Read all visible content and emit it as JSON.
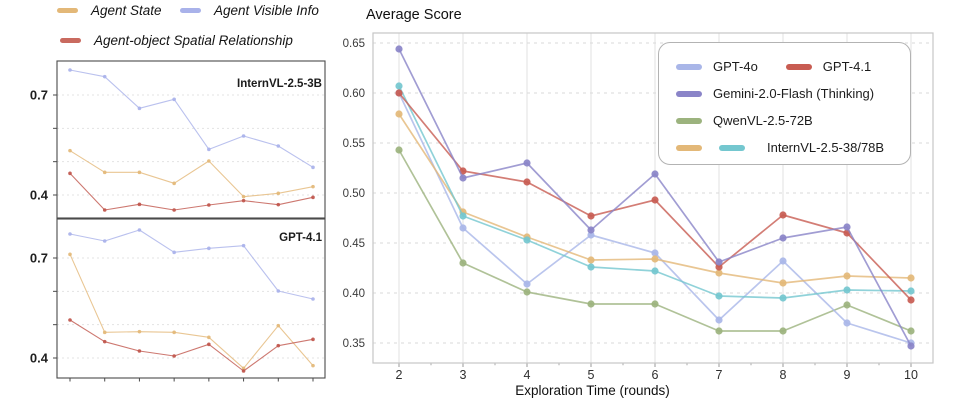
{
  "left_legend": {
    "items": [
      {
        "label": "Agent State",
        "color": "#e3b878"
      },
      {
        "label": "Agent Visible Info",
        "color": "#a9b2ea"
      },
      {
        "label": "Agent-object Spatial Relationship",
        "color": "#c96a5f"
      }
    ]
  },
  "chart_data": [
    {
      "type": "line",
      "title": "InternVL-2.5-3B",
      "ylim": [
        0.33,
        0.8
      ],
      "grid_values": [
        0.4,
        0.5,
        0.6,
        0.7
      ],
      "yticks": [
        {
          "value": 0.7,
          "label": "0.7"
        },
        {
          "value": 0.4,
          "label": "0.4"
        }
      ],
      "x_tick_labels_shown": false,
      "series": [
        {
          "name": "Agent State",
          "color": "#e3b878",
          "values": [
            0.533,
            0.468,
            0.468,
            0.435,
            0.502,
            0.395,
            0.405,
            0.425
          ]
        },
        {
          "name": "Agent-object Spatial Relationship",
          "color": "#c0564c",
          "values": [
            0.465,
            0.355,
            0.372,
            0.355,
            0.37,
            0.383,
            0.371,
            0.393
          ]
        },
        {
          "name": "Agent Visible Info",
          "color": "#a9b2ea",
          "values": [
            0.775,
            0.755,
            0.66,
            0.687,
            0.537,
            0.577,
            0.547,
            0.483
          ]
        }
      ]
    },
    {
      "type": "line",
      "title": "GPT-4.1",
      "ylim": [
        0.34,
        0.81
      ],
      "grid_values": [
        0.4,
        0.5,
        0.6,
        0.7
      ],
      "yticks": [
        {
          "value": 0.7,
          "label": "0.7"
        },
        {
          "value": 0.4,
          "label": "0.4"
        }
      ],
      "x_tick_labels_shown": false,
      "series": [
        {
          "name": "Agent State",
          "color": "#e3b878",
          "values": [
            0.711,
            0.477,
            0.479,
            0.477,
            0.462,
            0.369,
            0.497,
            0.377
          ]
        },
        {
          "name": "Agent-object Spatial Relationship",
          "color": "#c0564c",
          "values": [
            0.514,
            0.449,
            0.421,
            0.406,
            0.441,
            0.361,
            0.437,
            0.456
          ]
        },
        {
          "name": "Agent Visible Info",
          "color": "#a9b2ea",
          "values": [
            0.772,
            0.751,
            0.784,
            0.717,
            0.729,
            0.737,
            0.601,
            0.577
          ]
        }
      ]
    },
    {
      "type": "line",
      "title": "Average Score",
      "xlabel": "Exploration Time (rounds)",
      "x": [
        2,
        3,
        4,
        5,
        6,
        7,
        8,
        9,
        10
      ],
      "xtick_labels": [
        "2",
        "3",
        "4",
        "5",
        "6",
        "7",
        "8",
        "9",
        "10"
      ],
      "ylim": [
        0.33,
        0.66
      ],
      "yticks": [
        {
          "value": 0.65,
          "label": "0.65"
        },
        {
          "value": 0.6,
          "label": "0.60"
        },
        {
          "value": 0.55,
          "label": "0.55"
        },
        {
          "value": 0.5,
          "label": "0.50"
        },
        {
          "value": 0.45,
          "label": "0.45"
        },
        {
          "value": 0.4,
          "label": "0.40"
        },
        {
          "value": 0.35,
          "label": "0.35"
        }
      ],
      "legend": [
        {
          "label": "GPT-4o",
          "colors": [
            "#a9b6e8"
          ]
        },
        {
          "label": "GPT-4.1",
          "colors": [
            "#c85c52"
          ]
        },
        {
          "label": "Gemini-2.0-Flash (Thinking)",
          "colors": [
            "#8a84c8"
          ]
        },
        {
          "label": "QwenVL-2.5-72B",
          "colors": [
            "#9cb37e"
          ]
        },
        {
          "label": "InternVL-2.5-38/78B",
          "colors": [
            "#e3b878",
            "#74c7cf"
          ]
        }
      ],
      "series": [
        {
          "name": "QwenVL-2.5-72B",
          "color": "#9cb37e",
          "values": [
            0.543,
            0.43,
            0.401,
            0.389,
            0.389,
            0.362,
            0.362,
            0.388,
            0.362
          ]
        },
        {
          "name": "GPT-4o",
          "color": "#a9b6e8",
          "values": [
            0.6,
            0.465,
            0.409,
            0.458,
            0.44,
            0.373,
            0.432,
            0.37,
            0.35
          ]
        },
        {
          "name": "InternVL-2.5-38/78B",
          "color": "#e3b878",
          "values": [
            0.579,
            0.481,
            0.456,
            0.433,
            0.434,
            0.42,
            0.41,
            0.417,
            0.415
          ]
        },
        {
          "name": "InternVL-2.5-38/78B",
          "color": "#74c7cf",
          "values": [
            0.607,
            0.477,
            0.453,
            0.426,
            0.422,
            0.397,
            0.395,
            0.403,
            0.402
          ]
        },
        {
          "name": "GPT-4.1",
          "color": "#c85c52",
          "values": [
            0.6,
            0.522,
            0.511,
            0.477,
            0.493,
            0.426,
            0.478,
            0.46,
            0.393
          ]
        },
        {
          "name": "Gemini-2.0-Flash (Thinking)",
          "color": "#8a84c8",
          "values": [
            0.644,
            0.515,
            0.53,
            0.463,
            0.519,
            0.431,
            0.455,
            0.466,
            0.347
          ]
        }
      ]
    }
  ]
}
